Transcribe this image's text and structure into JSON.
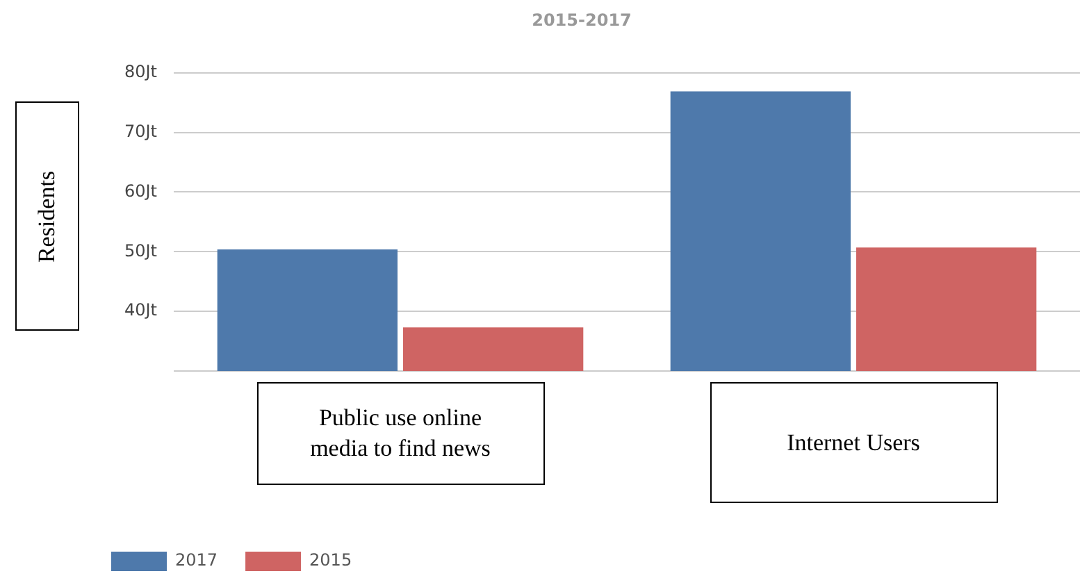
{
  "chart_data": {
    "type": "bar",
    "title": "2015-2017",
    "ylabel": "Residents",
    "categories": [
      "Public use online media to find news",
      "Internet Users"
    ],
    "series": [
      {
        "name": "2017",
        "color": "#4e79ab",
        "values": [
          50.4,
          76.9
        ]
      },
      {
        "name": "2015",
        "color": "#cf6463",
        "values": [
          37.3,
          50.7
        ]
      }
    ],
    "ylim": [
      30,
      80
    ],
    "yticks": [
      {
        "value": 30,
        "label": null
      },
      {
        "value": 40,
        "label": "40Jt"
      },
      {
        "value": 50,
        "label": "50Jt"
      },
      {
        "value": 60,
        "label": "60Jt"
      },
      {
        "value": 70,
        "label": "70Jt"
      },
      {
        "value": 80,
        "label": "80Jt"
      }
    ],
    "grid": "y",
    "legend": "bottom left"
  }
}
